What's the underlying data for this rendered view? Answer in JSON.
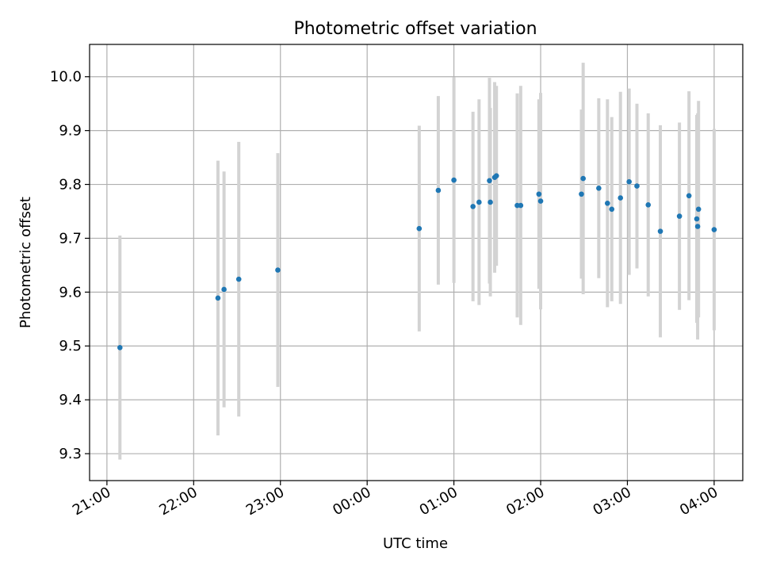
{
  "chart_data": {
    "type": "scatter",
    "title": "Photometric offset variation",
    "xlabel": "UTC time",
    "ylabel": "Photometric offset",
    "x_unit": "hours after 21:00 UTC",
    "xlim": [
      -0.2,
      7.33
    ],
    "ylim": [
      9.25,
      10.06
    ],
    "x_ticks": [
      0,
      1,
      2,
      3,
      4,
      5,
      6,
      7
    ],
    "x_tick_labels": [
      "21:00",
      "22:00",
      "23:00",
      "00:00",
      "01:00",
      "02:00",
      "03:00",
      "04:00"
    ],
    "y_ticks": [
      9.3,
      9.4,
      9.5,
      9.6,
      9.7,
      9.8,
      9.9,
      10.0
    ],
    "y_tick_labels": [
      "9.3",
      "9.4",
      "9.5",
      "9.6",
      "9.7",
      "9.8",
      "9.9",
      "10.0"
    ],
    "grid": true,
    "colors": {
      "point": "#1f77b4",
      "errorbar": "#d3d3d3",
      "grid": "#b0b0b0"
    },
    "points": [
      {
        "x": 0.15,
        "y": 9.497,
        "err": 0.208
      },
      {
        "x": 1.28,
        "y": 9.589,
        "err": 0.255
      },
      {
        "x": 1.35,
        "y": 9.605,
        "err": 0.219
      },
      {
        "x": 1.52,
        "y": 9.624,
        "err": 0.255
      },
      {
        "x": 1.97,
        "y": 9.641,
        "err": 0.217
      },
      {
        "x": 3.6,
        "y": 9.718,
        "err": 0.191
      },
      {
        "x": 3.82,
        "y": 9.789,
        "err": 0.175
      },
      {
        "x": 4.0,
        "y": 9.808,
        "err": 0.191
      },
      {
        "x": 4.22,
        "y": 9.759,
        "err": 0.176
      },
      {
        "x": 4.29,
        "y": 9.767,
        "err": 0.191
      },
      {
        "x": 4.41,
        "y": 9.807,
        "err": 0.191
      },
      {
        "x": 4.42,
        "y": 9.767,
        "err": 0.175
      },
      {
        "x": 4.47,
        "y": 9.813,
        "err": 0.177
      },
      {
        "x": 4.49,
        "y": 9.816,
        "err": 0.167
      },
      {
        "x": 4.73,
        "y": 9.761,
        "err": 0.208
      },
      {
        "x": 4.77,
        "y": 9.761,
        "err": 0.222
      },
      {
        "x": 4.98,
        "y": 9.782,
        "err": 0.176
      },
      {
        "x": 5.0,
        "y": 9.769,
        "err": 0.201
      },
      {
        "x": 5.47,
        "y": 9.782,
        "err": 0.157
      },
      {
        "x": 5.49,
        "y": 9.811,
        "err": 0.215
      },
      {
        "x": 5.67,
        "y": 9.793,
        "err": 0.167
      },
      {
        "x": 5.77,
        "y": 9.765,
        "err": 0.193
      },
      {
        "x": 5.82,
        "y": 9.754,
        "err": 0.171
      },
      {
        "x": 5.92,
        "y": 9.775,
        "err": 0.197
      },
      {
        "x": 6.02,
        "y": 9.805,
        "err": 0.173
      },
      {
        "x": 6.11,
        "y": 9.797,
        "err": 0.153
      },
      {
        "x": 6.24,
        "y": 9.762,
        "err": 0.17
      },
      {
        "x": 6.38,
        "y": 9.713,
        "err": 0.197
      },
      {
        "x": 6.6,
        "y": 9.741,
        "err": 0.174
      },
      {
        "x": 6.71,
        "y": 9.779,
        "err": 0.194
      },
      {
        "x": 6.8,
        "y": 9.736,
        "err": 0.193
      },
      {
        "x": 6.81,
        "y": 9.722,
        "err": 0.21
      },
      {
        "x": 6.82,
        "y": 9.754,
        "err": 0.201
      },
      {
        "x": 7.0,
        "y": 9.716,
        "err": 0.187
      }
    ]
  }
}
